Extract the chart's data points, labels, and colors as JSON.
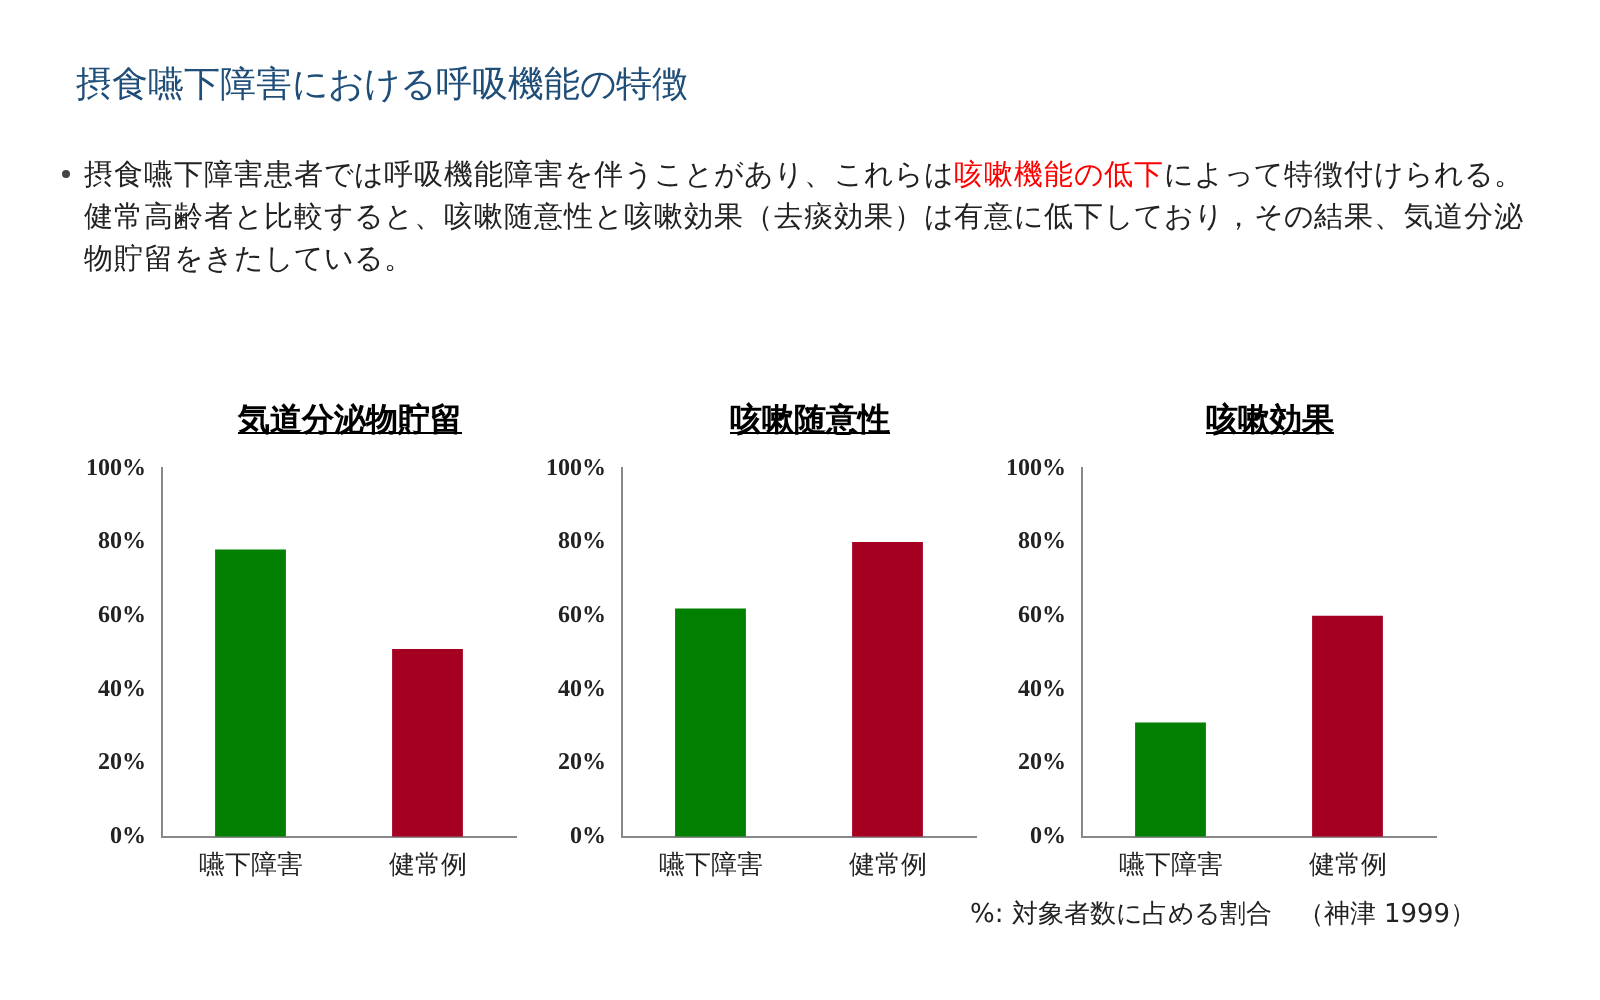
{
  "chart_data": [
    {
      "type": "bar",
      "title": "気道分泌物貯留",
      "categories": [
        "嚥下障害",
        "健常例"
      ],
      "values": [
        78,
        51
      ],
      "colors": [
        "#007f00",
        "#a50021"
      ],
      "ylim": [
        0,
        100
      ],
      "yticks": [
        {
          "value": 0,
          "label": "0%"
        },
        {
          "value": 20,
          "label": "20%"
        },
        {
          "value": 40,
          "label": "40%"
        },
        {
          "value": 60,
          "label": "60%"
        },
        {
          "value": 80,
          "label": "80%"
        },
        {
          "value": 100,
          "label": "100%"
        }
      ],
      "grid": false,
      "legend": false,
      "annotations": [
        "摂食嚥下障害における呼吸機能の特徴",
        "摂食嚥下障害患者では呼吸機能障害を伴うことがあり、これらは",
        "咳嗽機能の低下",
        "によって特徴付けられる。健常高齢者と比較すると、咳嗽随意性と咳嗽効果（去痰効果）は有意に低下しており，その結果、気道分泌物貯留をきたしている。"
      ]
    },
    {
      "type": "bar",
      "title": "咳嗽随意性",
      "categories": [
        "嚥下障害",
        "健常例"
      ],
      "values": [
        62,
        80
      ],
      "colors": [
        "#007f00",
        "#a50021"
      ],
      "ylim": [
        0,
        100
      ],
      "yticks": [
        {
          "value": 0,
          "label": "0%"
        },
        {
          "value": 20,
          "label": "20%"
        },
        {
          "value": 40,
          "label": "40%"
        },
        {
          "value": 60,
          "label": "60%"
        },
        {
          "value": 80,
          "label": "80%"
        },
        {
          "value": 100,
          "label": "100%"
        }
      ],
      "grid": false,
      "legend": false
    },
    {
      "type": "bar",
      "title": "咳嗽効果",
      "categories": [
        "嚥下障害",
        "健常例"
      ],
      "values": [
        31,
        60
      ],
      "colors": [
        "#007f00",
        "#a50021"
      ],
      "ylim": [
        0,
        100
      ],
      "yticks": [
        {
          "value": 0,
          "label": "0%"
        },
        {
          "value": 20,
          "label": "20%"
        },
        {
          "value": 40,
          "label": "40%"
        },
        {
          "value": 60,
          "label": "60%"
        },
        {
          "value": 80,
          "label": "80%"
        },
        {
          "value": 100,
          "label": "100%"
        }
      ],
      "grid": false,
      "legend": false,
      "annotations": [
        "%: 対象者数に占める割合　（神津  1999）"
      ]
    }
  ]
}
